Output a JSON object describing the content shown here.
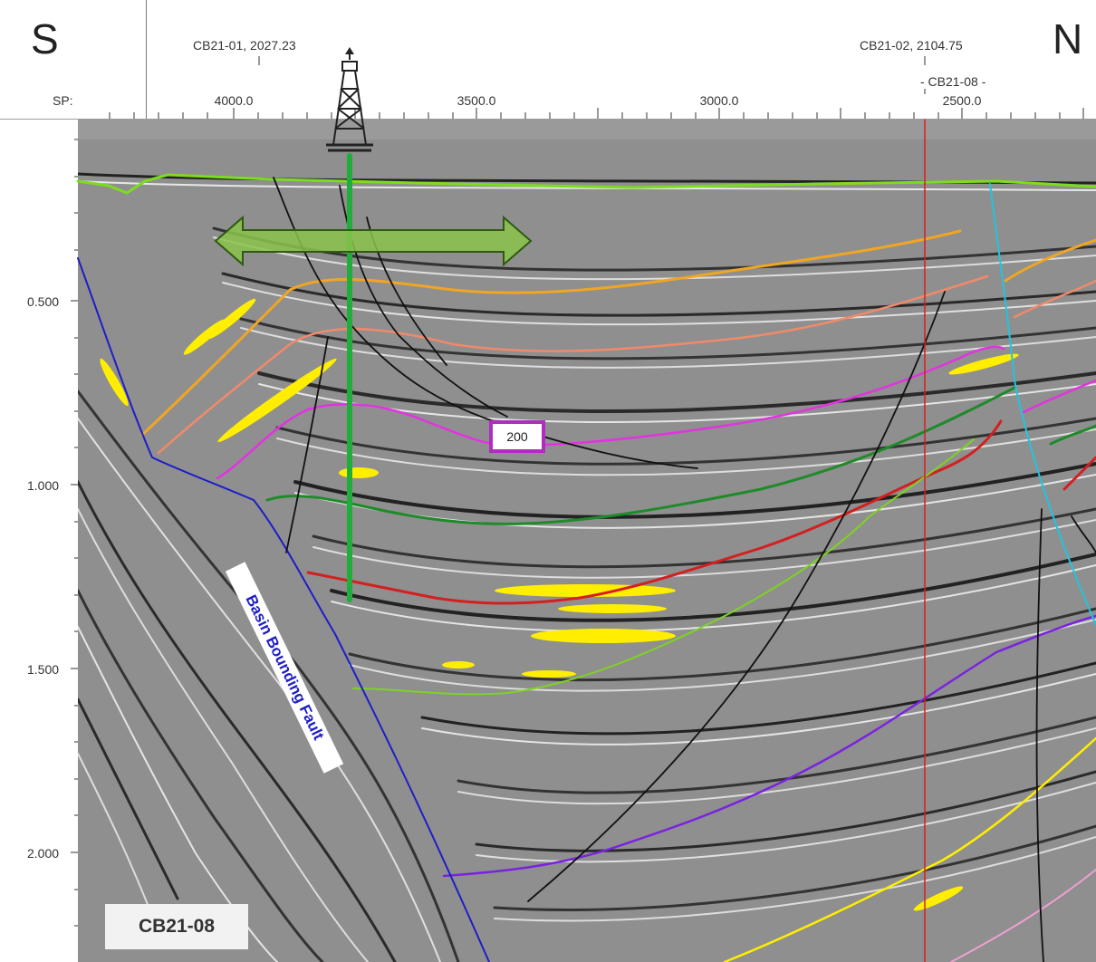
{
  "header": {
    "compass_left": "S",
    "compass_right": "N",
    "sp_label": "SP:",
    "wells": [
      {
        "name": "CB21-01, 2027.23"
      },
      {
        "name": "CB21-02, 2104.75"
      },
      {
        "name": "- CB21-08 -"
      }
    ],
    "sp_ticks": [
      "4000.0",
      "3500.0",
      "3000.0",
      "2500.0"
    ]
  },
  "y_axis": {
    "ticks": [
      "0.500",
      "1.000",
      "1.500",
      "2.000"
    ]
  },
  "annotations": {
    "horizon_marker": "200",
    "fault_label": "Basin Bounding Fault",
    "line_name": "CB21-08"
  },
  "colors": {
    "seabed_horizon": "#7ddc1f",
    "orange_horizon": "#f0a623",
    "salmon_horizon": "#f08a6a",
    "magenta_horizon": "#e233e0",
    "dark_green_horizon": "#1f8a2a",
    "red_horizon": "#d41f1f",
    "light_green_horizon": "#7ed321",
    "purple_horizon": "#7a22e0",
    "yellow_horizon": "#ffee00",
    "pink_horizon": "#f0a0d0",
    "basin_fault": "#1e1ec8",
    "cyan_fault": "#21c4e0",
    "faults": "#111111",
    "well_marker_line": "#d42020",
    "well_trajectory": "#1fae3a",
    "arrow": "#8bc34a"
  }
}
